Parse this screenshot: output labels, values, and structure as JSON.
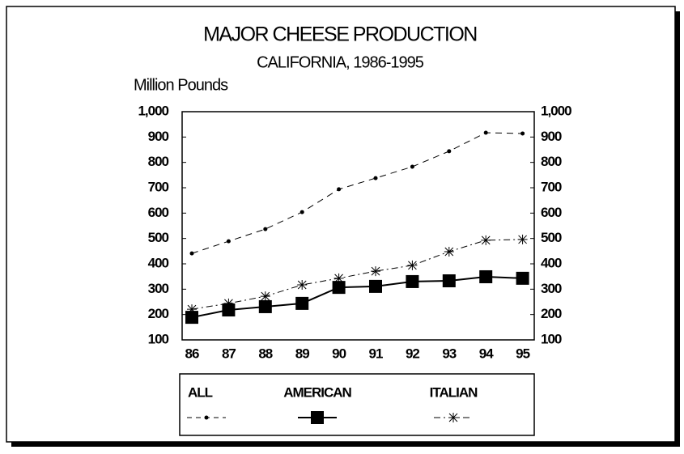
{
  "chart_data": {
    "type": "line",
    "title": "MAJOR CHEESE PRODUCTION",
    "subtitle": "CALIFORNIA, 1986-1995",
    "y_label": "Million Pounds",
    "categories": [
      "86",
      "87",
      "88",
      "89",
      "90",
      "91",
      "92",
      "93",
      "94",
      "95"
    ],
    "series": [
      {
        "name": "ALL",
        "color": "#000000",
        "values": [
          441,
          489,
          537,
          604,
          694,
          738,
          783,
          844,
          917,
          914
        ]
      },
      {
        "name": "AMERICAN",
        "color": "#000000",
        "values": [
          189,
          218,
          231,
          244,
          307,
          311,
          330,
          333,
          349,
          343
        ]
      },
      {
        "name": "ITALIAN",
        "color": "#000000",
        "values": [
          221,
          244,
          272,
          317,
          343,
          371,
          394,
          448,
          493,
          496
        ]
      }
    ],
    "ylim": [
      100,
      1000
    ],
    "yticks": [
      100,
      200,
      300,
      400,
      500,
      600,
      700,
      800,
      900,
      {
        "value": 1000,
        "label": "1,000"
      }
    ],
    "y2lim": [
      100,
      1000
    ],
    "y2ticks": [
      100,
      200,
      300,
      400,
      500,
      600,
      700,
      800,
      900,
      {
        "value": 1000,
        "label": "1,000"
      }
    ],
    "legend": "bottom"
  }
}
